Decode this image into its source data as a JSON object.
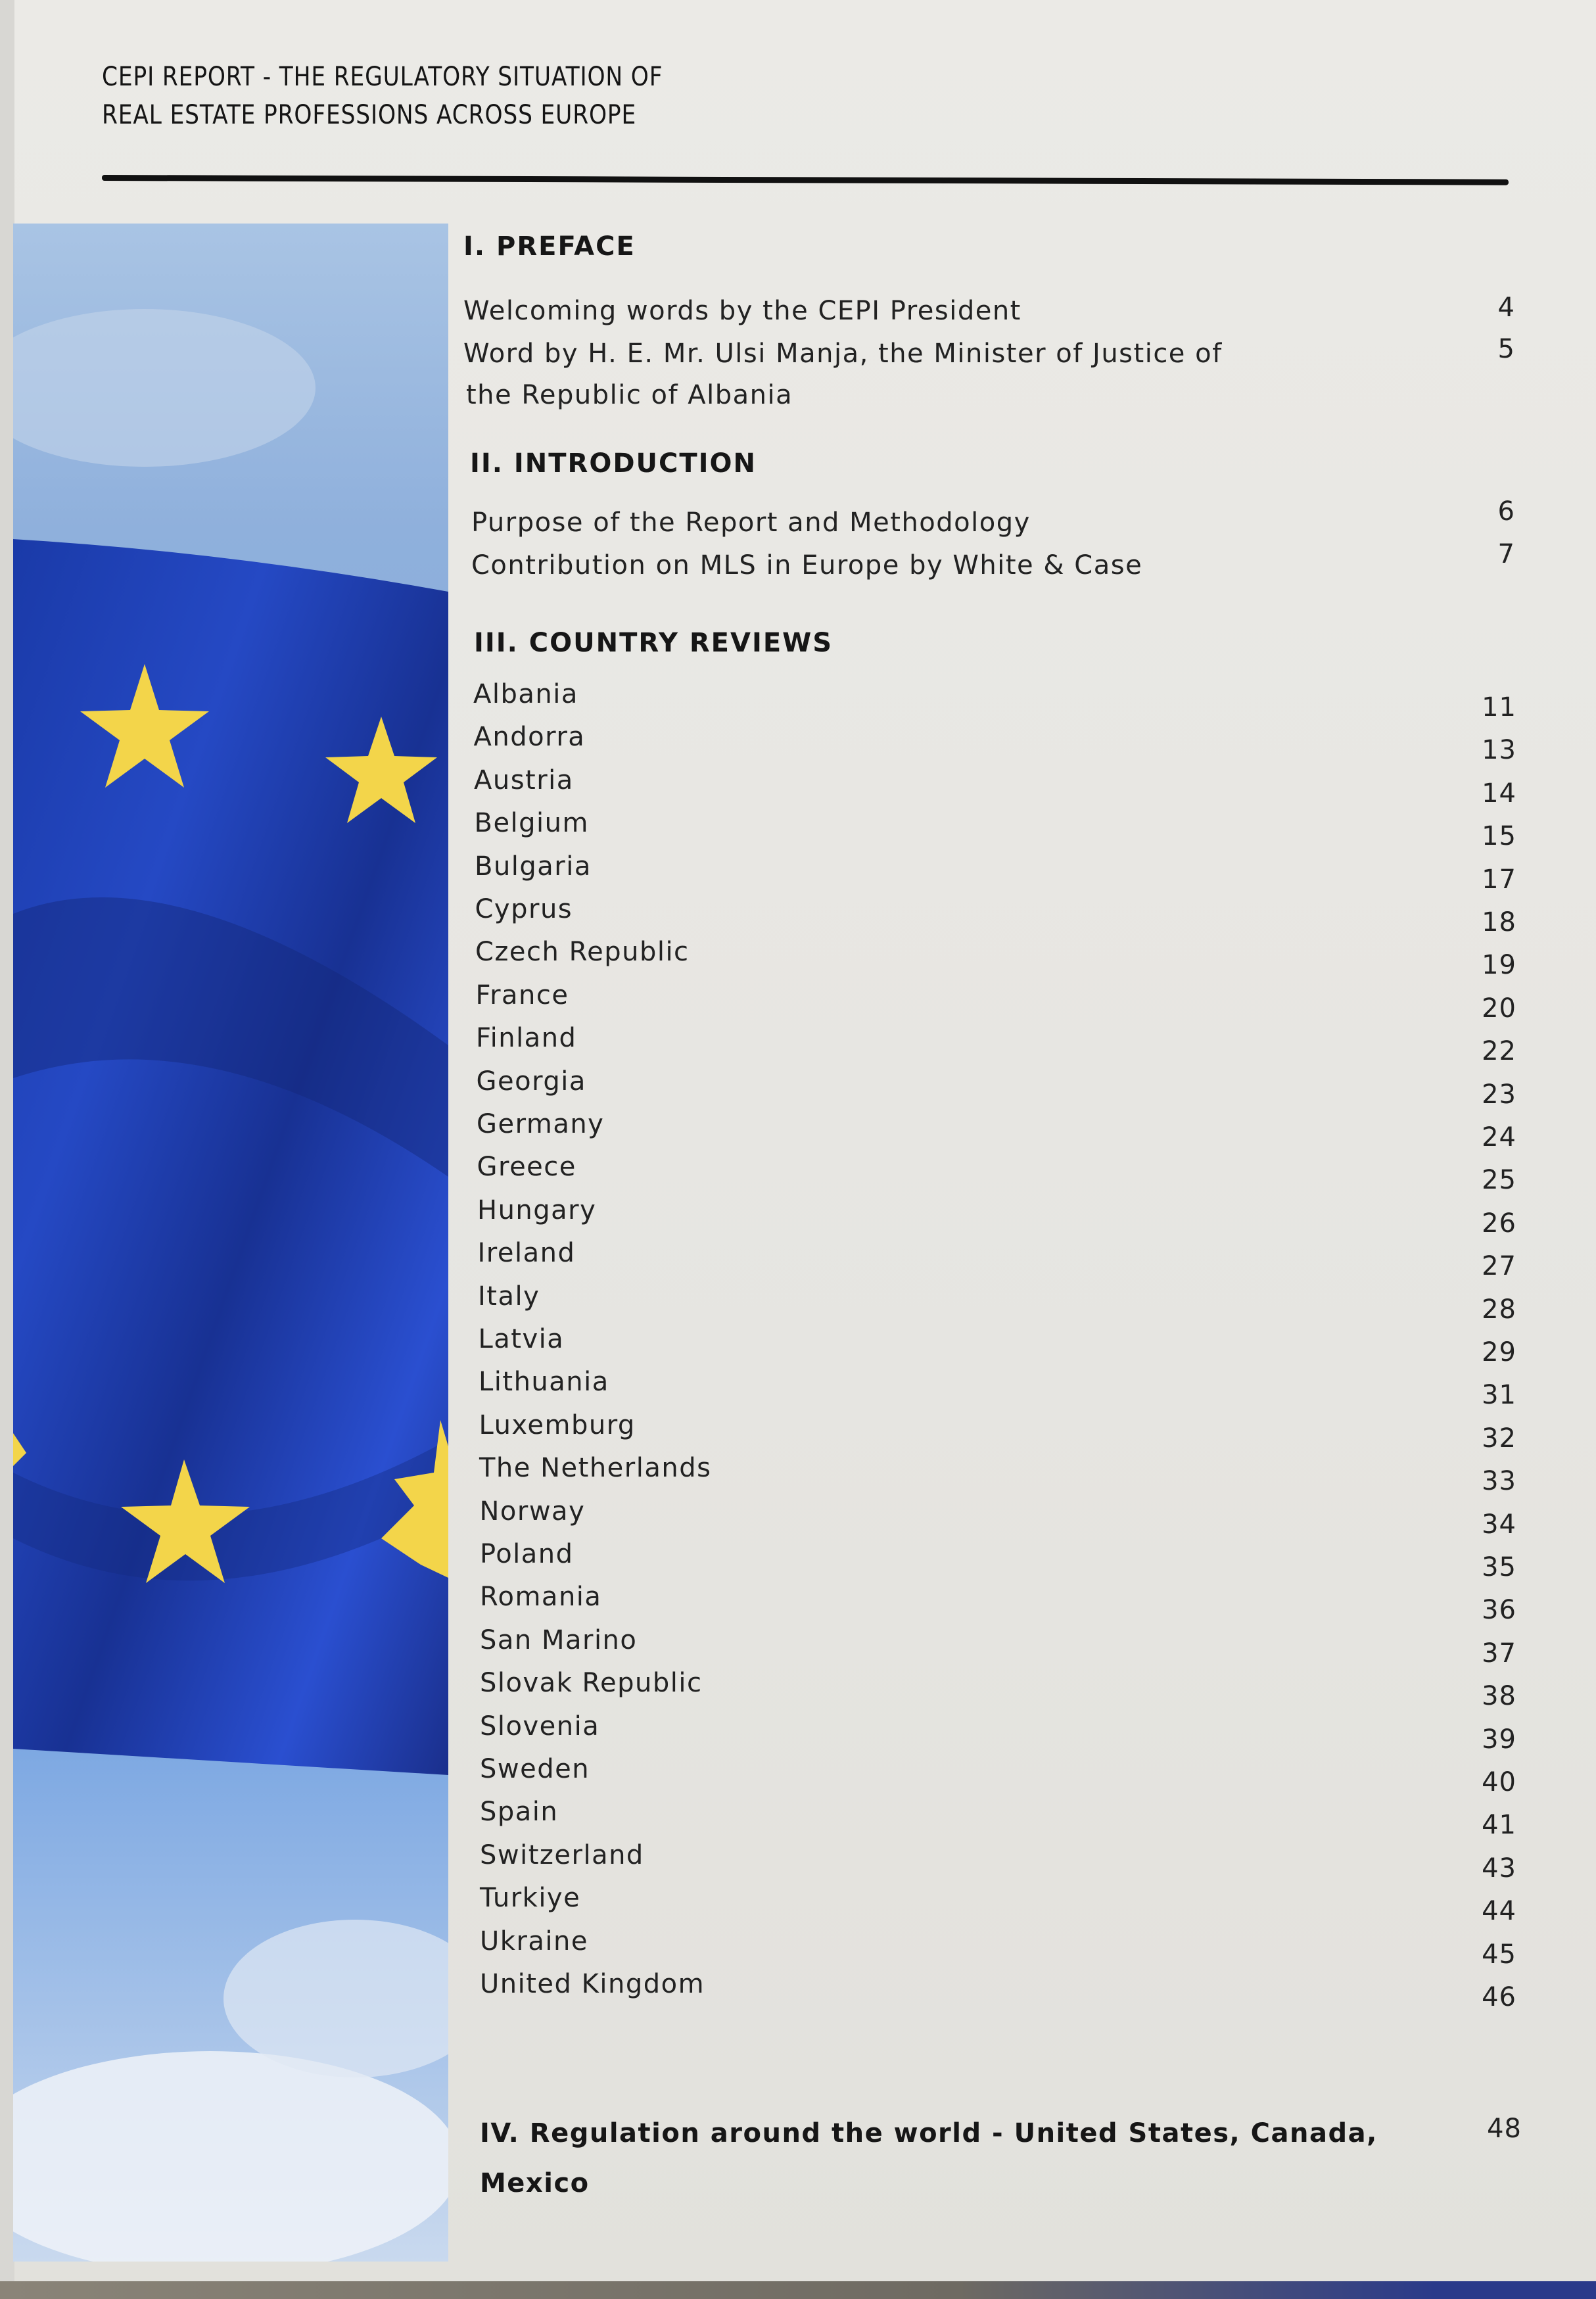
{
  "header": {
    "line1": "CEPI REPORT - THE REGULATORY SITUATION OF",
    "line2": "REAL ESTATE PROFESSIONS ACROSS EUROPE"
  },
  "image": {
    "subject": "EU flag waving against sky",
    "colors": {
      "flag_blue": "#1f3fb8",
      "star_yellow": "#f3d54a",
      "sky": "#8fb6e6"
    }
  },
  "toc": {
    "preface": {
      "heading": "I. PREFACE",
      "entries": [
        {
          "title": "Welcoming words by the CEPI President",
          "page": "4"
        },
        {
          "title": "Word by H. E. Mr. Ulsi Manja, the Minister of Justice of",
          "title2": "the Republic of Albania",
          "page": "5"
        }
      ]
    },
    "introduction": {
      "heading": "II. INTRODUCTION",
      "entries": [
        {
          "title": "Purpose of the Report and Methodology",
          "page": "6"
        },
        {
          "title": "Contribution on MLS in Europe by White & Case",
          "page": "7"
        }
      ]
    },
    "country_reviews": {
      "heading": "III. COUNTRY REVIEWS",
      "entries": [
        {
          "title": "Albania",
          "page": "11"
        },
        {
          "title": "Andorra",
          "page": "13"
        },
        {
          "title": "Austria",
          "page": "14"
        },
        {
          "title": "Belgium",
          "page": "15"
        },
        {
          "title": "Bulgaria",
          "page": "17"
        },
        {
          "title": "Cyprus",
          "page": "18"
        },
        {
          "title": "Czech Republic",
          "page": "19"
        },
        {
          "title": "France",
          "page": "20"
        },
        {
          "title": "Finland",
          "page": "22"
        },
        {
          "title": "Georgia",
          "page": "23"
        },
        {
          "title": "Germany",
          "page": "24"
        },
        {
          "title": "Greece",
          "page": "25"
        },
        {
          "title": "Hungary",
          "page": "26"
        },
        {
          "title": "Ireland",
          "page": "27"
        },
        {
          "title": "Italy",
          "page": "28"
        },
        {
          "title": "Latvia",
          "page": "29"
        },
        {
          "title": "Lithuania",
          "page": "31"
        },
        {
          "title": "Luxemburg",
          "page": "32"
        },
        {
          "title": "The Netherlands",
          "page": "33"
        },
        {
          "title": "Norway",
          "page": "34"
        },
        {
          "title": "Poland",
          "page": "35"
        },
        {
          "title": "Romania",
          "page": "36"
        },
        {
          "title": "San Marino",
          "page": "37"
        },
        {
          "title": "Slovak Republic",
          "page": "38"
        },
        {
          "title": "Slovenia",
          "page": "39"
        },
        {
          "title": "Sweden",
          "page": "40"
        },
        {
          "title": "Spain",
          "page": "41"
        },
        {
          "title": "Switzerland",
          "page": "43"
        },
        {
          "title": "Turkiye",
          "page": "44"
        },
        {
          "title": "Ukraine",
          "page": "45"
        },
        {
          "title": "United Kingdom",
          "page": "46"
        }
      ]
    },
    "world": {
      "heading": "IV. Regulation around the world  - United States, Canada,",
      "heading2": "Mexico",
      "page": "48"
    }
  }
}
